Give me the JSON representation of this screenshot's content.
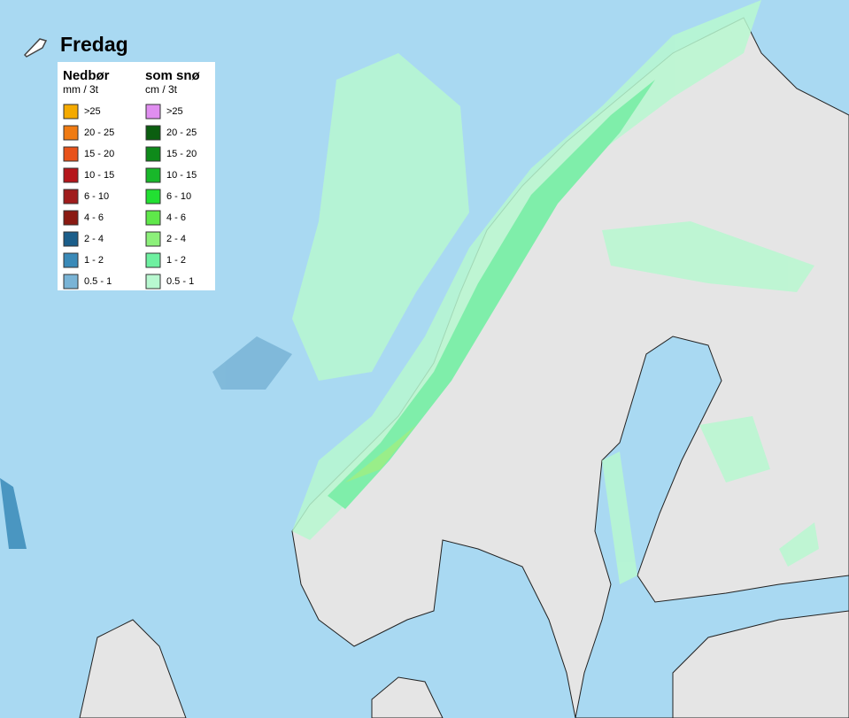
{
  "title": "Fredag",
  "legend": {
    "columns": [
      {
        "title": "Nedbør",
        "unit": "mm / 3t",
        "entries": [
          {
            "label": ">25",
            "color": "#f5aa00"
          },
          {
            "label": "20 - 25",
            "color": "#f07b12"
          },
          {
            "label": "15 - 20",
            "color": "#e8521a"
          },
          {
            "label": "10 - 15",
            "color": "#b5161b"
          },
          {
            "label": "6 - 10",
            "color": "#a01c1c"
          },
          {
            "label": "4 - 6",
            "color": "#8a1a12"
          },
          {
            "label": "2 - 4",
            "color": "#1b5e8a"
          },
          {
            "label": "1 - 2",
            "color": "#3a8ab8"
          },
          {
            "label": "0.5 - 1",
            "color": "#7ab4d6"
          }
        ]
      },
      {
        "title": "som snø",
        "unit": "cm / 3t",
        "entries": [
          {
            "label": ">25",
            "color": "#e08ef0"
          },
          {
            "label": "20 - 25",
            "color": "#0b5e10"
          },
          {
            "label": "15 - 20",
            "color": "#0e8a1a"
          },
          {
            "label": "10 - 15",
            "color": "#18b82a"
          },
          {
            "label": "6 - 10",
            "color": "#22e032"
          },
          {
            "label": "4 - 6",
            "color": "#5fe84a"
          },
          {
            "label": "2 - 4",
            "color": "#8cf07a"
          },
          {
            "label": "1 - 2",
            "color": "#6ef0a0"
          },
          {
            "label": "0.5 - 1",
            "color": "#b8f8d0"
          }
        ]
      }
    ]
  }
}
